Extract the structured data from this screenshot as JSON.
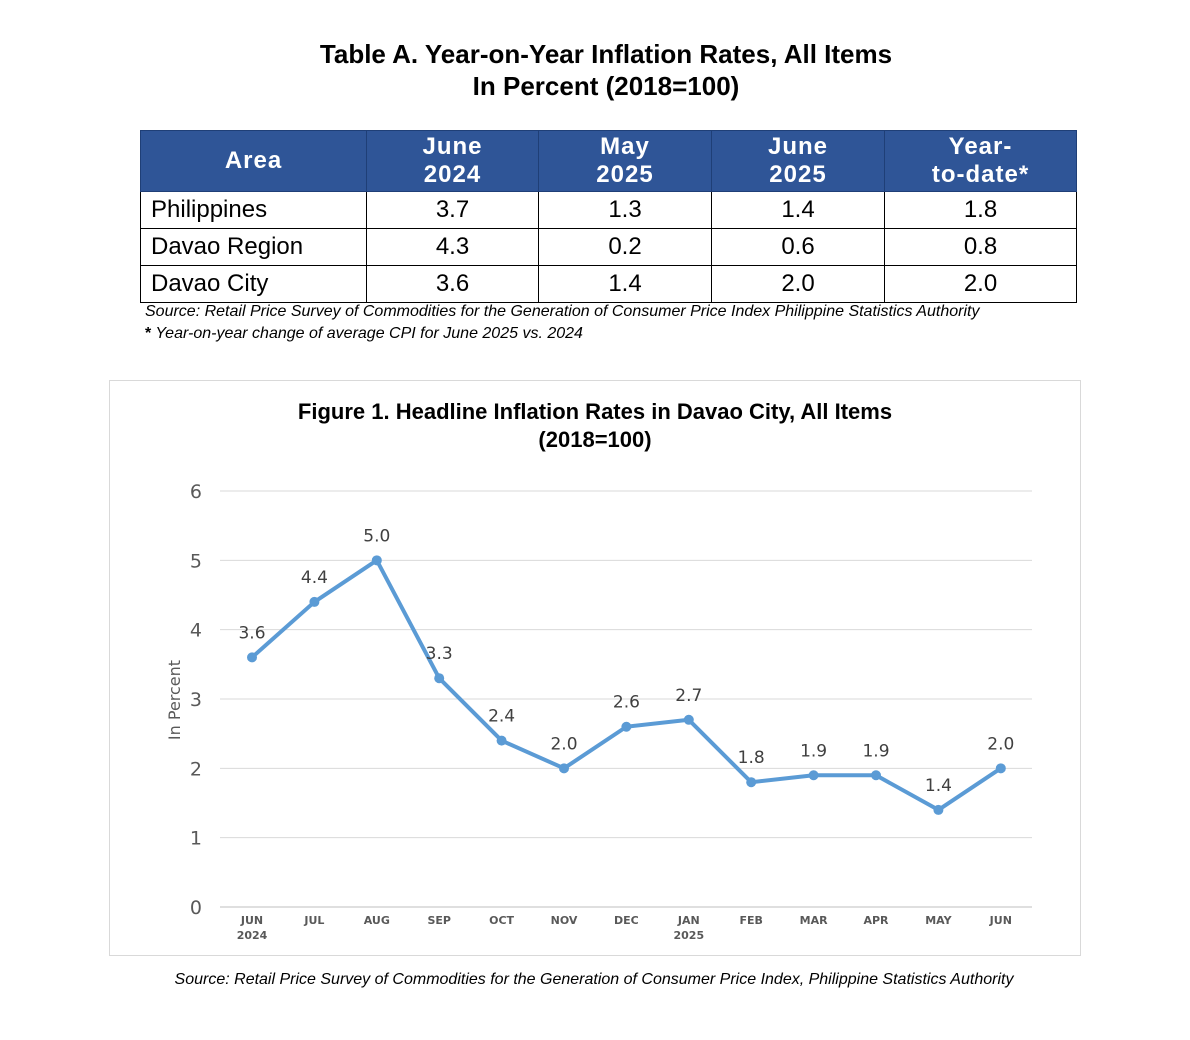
{
  "table": {
    "title_line1": "Table A. Year-on-Year Inflation Rates, All Items",
    "title_line2": "In Percent (2018=100)",
    "headers": [
      {
        "line1": "Area",
        "line2": ""
      },
      {
        "line1": "June",
        "line2": "2024"
      },
      {
        "line1": "May",
        "line2": "2025"
      },
      {
        "line1": "June",
        "line2": "2025"
      },
      {
        "line1": "Year-",
        "line2": "to-date*"
      }
    ],
    "rows": [
      {
        "area": "Philippines",
        "values": [
          "3.7",
          "1.3",
          "1.4",
          "1.8"
        ]
      },
      {
        "area": "Davao Region",
        "values": [
          "4.3",
          "0.2",
          "0.6",
          "0.8"
        ]
      },
      {
        "area": "Davao City",
        "values": [
          "3.6",
          "1.4",
          "2.0",
          "2.0"
        ]
      }
    ],
    "source": "Source: Retail Price Survey of Commodities for the Generation of Consumer Price Index Philippine Statistics Authority",
    "note_star": "*",
    "note": " Year-on-year change of average CPI for June 2025 vs. 2024"
  },
  "chart_data": {
    "type": "line",
    "title_line1": "Figure 1. Headline Inflation Rates in Davao City, All Items",
    "title_line2": "(2018=100)",
    "ylabel": "In Percent",
    "xlabel": "",
    "ylim": [
      0,
      6
    ],
    "yticks": [
      0,
      1,
      2,
      3,
      4,
      5,
      6
    ],
    "grid": true,
    "line_color": "#5b9bd5",
    "categories": [
      {
        "label": "JUN",
        "sub": "2024"
      },
      {
        "label": "JUL",
        "sub": ""
      },
      {
        "label": "AUG",
        "sub": ""
      },
      {
        "label": "SEP",
        "sub": ""
      },
      {
        "label": "OCT",
        "sub": ""
      },
      {
        "label": "NOV",
        "sub": ""
      },
      {
        "label": "DEC",
        "sub": ""
      },
      {
        "label": "JAN",
        "sub": "2025"
      },
      {
        "label": "FEB",
        "sub": ""
      },
      {
        "label": "MAR",
        "sub": ""
      },
      {
        "label": "APR",
        "sub": ""
      },
      {
        "label": "MAY",
        "sub": ""
      },
      {
        "label": "JUN",
        "sub": ""
      }
    ],
    "values": [
      3.6,
      4.4,
      5.0,
      3.3,
      2.4,
      2.0,
      2.6,
      2.7,
      1.8,
      1.9,
      1.9,
      1.4,
      2.0
    ],
    "data_labels": [
      "3.6",
      "4.4",
      "5.0",
      "3.3",
      "2.4",
      "2.0",
      "2.6",
      "2.7",
      "1.8",
      "1.9",
      "1.9",
      "1.4",
      "2.0"
    ]
  },
  "chart_source": "Source: Retail Price Survey of Commodities for the Generation of Consumer Price Index, Philippine Statistics Authority"
}
